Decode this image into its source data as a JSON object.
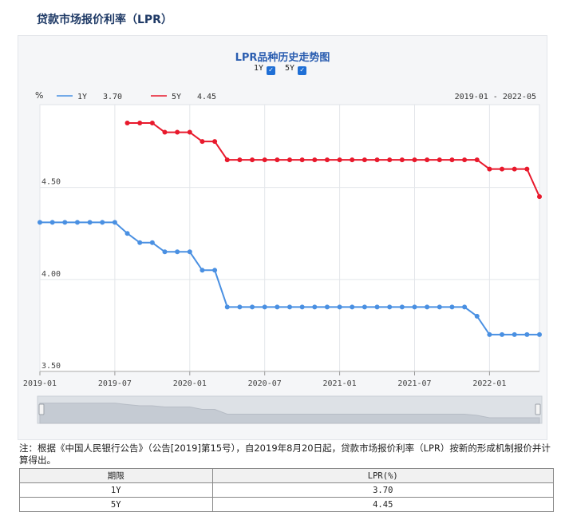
{
  "page": {
    "title": "贷款市场报价利率（LPR）",
    "note": "注：根据《中国人民银行公告》（公告[2019]第15号），自2019年8月20日起，贷款市场报价利率（LPR）按新的形成机制报价并计算得出。"
  },
  "toggles": [
    {
      "label": "1Y",
      "checked": true
    },
    {
      "label": "5Y",
      "checked": true
    }
  ],
  "table": {
    "headers": [
      "期限",
      "LPR(%)"
    ],
    "rows": [
      [
        "1Y",
        "3.70"
      ],
      [
        "5Y",
        "4.45"
      ]
    ]
  },
  "chart_data": {
    "type": "line",
    "title": "LPR品种历史走势图",
    "unit_label": "%",
    "date_range": "2019-01 - 2022-05",
    "legend": [
      {
        "name": "1Y",
        "value": "3.70",
        "color": "#4a90e2"
      },
      {
        "name": "5Y",
        "value": "4.45",
        "color": "#e8192c"
      }
    ],
    "x_ticks": [
      "2019-01",
      "2019-07",
      "2020-01",
      "2020-07",
      "2021-01",
      "2021-07",
      "2022-01"
    ],
    "y_ticks": [
      "3.50",
      "4.00",
      "4.50"
    ],
    "ylim": [
      3.5,
      4.95
    ],
    "grid": true,
    "series": [
      {
        "name": "1Y",
        "color": "#4a90e2",
        "points": [
          [
            "2019-01",
            4.31
          ],
          [
            "2019-02",
            4.31
          ],
          [
            "2019-03",
            4.31
          ],
          [
            "2019-04",
            4.31
          ],
          [
            "2019-05",
            4.31
          ],
          [
            "2019-06",
            4.31
          ],
          [
            "2019-07",
            4.31
          ],
          [
            "2019-08",
            4.25
          ],
          [
            "2019-09",
            4.2
          ],
          [
            "2019-10",
            4.2
          ],
          [
            "2019-11",
            4.15
          ],
          [
            "2019-12",
            4.15
          ],
          [
            "2020-01",
            4.15
          ],
          [
            "2020-02",
            4.05
          ],
          [
            "2020-03",
            4.05
          ],
          [
            "2020-04",
            3.85
          ],
          [
            "2020-05",
            3.85
          ],
          [
            "2020-06",
            3.85
          ],
          [
            "2020-07",
            3.85
          ],
          [
            "2020-08",
            3.85
          ],
          [
            "2020-09",
            3.85
          ],
          [
            "2020-10",
            3.85
          ],
          [
            "2020-11",
            3.85
          ],
          [
            "2020-12",
            3.85
          ],
          [
            "2021-01",
            3.85
          ],
          [
            "2021-02",
            3.85
          ],
          [
            "2021-03",
            3.85
          ],
          [
            "2021-04",
            3.85
          ],
          [
            "2021-05",
            3.85
          ],
          [
            "2021-06",
            3.85
          ],
          [
            "2021-07",
            3.85
          ],
          [
            "2021-08",
            3.85
          ],
          [
            "2021-09",
            3.85
          ],
          [
            "2021-10",
            3.85
          ],
          [
            "2021-11",
            3.85
          ],
          [
            "2021-12",
            3.8
          ],
          [
            "2022-01",
            3.7
          ],
          [
            "2022-02",
            3.7
          ],
          [
            "2022-03",
            3.7
          ],
          [
            "2022-04",
            3.7
          ],
          [
            "2022-05",
            3.7
          ]
        ]
      },
      {
        "name": "5Y",
        "color": "#e8192c",
        "points": [
          [
            "2019-08",
            4.85
          ],
          [
            "2019-09",
            4.85
          ],
          [
            "2019-10",
            4.85
          ],
          [
            "2019-11",
            4.8
          ],
          [
            "2019-12",
            4.8
          ],
          [
            "2020-01",
            4.8
          ],
          [
            "2020-02",
            4.75
          ],
          [
            "2020-03",
            4.75
          ],
          [
            "2020-04",
            4.65
          ],
          [
            "2020-05",
            4.65
          ],
          [
            "2020-06",
            4.65
          ],
          [
            "2020-07",
            4.65
          ],
          [
            "2020-08",
            4.65
          ],
          [
            "2020-09",
            4.65
          ],
          [
            "2020-10",
            4.65
          ],
          [
            "2020-11",
            4.65
          ],
          [
            "2020-12",
            4.65
          ],
          [
            "2021-01",
            4.65
          ],
          [
            "2021-02",
            4.65
          ],
          [
            "2021-03",
            4.65
          ],
          [
            "2021-04",
            4.65
          ],
          [
            "2021-05",
            4.65
          ],
          [
            "2021-06",
            4.65
          ],
          [
            "2021-07",
            4.65
          ],
          [
            "2021-08",
            4.65
          ],
          [
            "2021-09",
            4.65
          ],
          [
            "2021-10",
            4.65
          ],
          [
            "2021-11",
            4.65
          ],
          [
            "2021-12",
            4.65
          ],
          [
            "2022-01",
            4.6
          ],
          [
            "2022-02",
            4.6
          ],
          [
            "2022-03",
            4.6
          ],
          [
            "2022-04",
            4.6
          ],
          [
            "2022-05",
            4.45
          ]
        ]
      }
    ]
  }
}
